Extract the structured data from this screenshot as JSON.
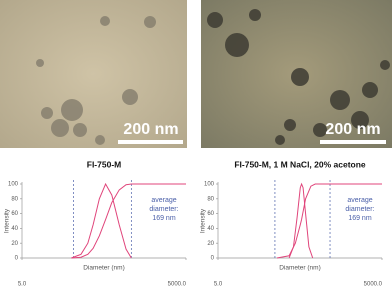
{
  "images": [
    {
      "scale_bar": "200 nm"
    },
    {
      "scale_bar": "200 nm"
    }
  ],
  "chart_data": [
    {
      "type": "line",
      "title": "FI-750-M",
      "xlabel": "Diameter (nm)",
      "ylabel": "Intensity",
      "log_x": true,
      "xlim": [
        5,
        5000
      ],
      "ylim": [
        0,
        100
      ],
      "xticks": [
        {
          "value": 5,
          "label": "5.0"
        },
        {
          "value": 5000,
          "label": "5000.0"
        }
      ],
      "yticks": [
        0,
        20,
        40,
        60,
        80,
        100
      ],
      "vlines": [
        44,
        500
      ],
      "vline_color": "#4a5fa8",
      "annotation": [
        "average",
        "diameter:",
        "169 nm"
      ],
      "series": [
        {
          "color": "#e0457b",
          "x": [
            40,
            60,
            80,
            100,
            130,
            169,
            220,
            300,
            400,
            500
          ],
          "values": [
            0,
            5,
            20,
            45,
            80,
            100,
            85,
            45,
            12,
            0
          ]
        },
        {
          "color": "#e0457b",
          "x": [
            40,
            60,
            80,
            100,
            130,
            169,
            220,
            300,
            400,
            500,
            5000
          ],
          "values": [
            0,
            1,
            5,
            13,
            30,
            52,
            75,
            92,
            99,
            100,
            100
          ]
        }
      ]
    },
    {
      "type": "line",
      "title": "FI-750-M, 1 M NaCl, 20% acetone",
      "xlabel": "Diameter (nm)",
      "ylabel": "Intensity",
      "log_x": true,
      "xlim": [
        5,
        5000
      ],
      "ylim": [
        0,
        100
      ],
      "xticks": [
        {
          "value": 5,
          "label": "5.0"
        },
        {
          "value": 5000,
          "label": "5000.0"
        }
      ],
      "yticks": [
        0,
        20,
        40,
        60,
        80,
        100
      ],
      "vlines": [
        55,
        560
      ],
      "vline_color": "#4a5fa8",
      "annotation": [
        "average",
        "diameter:",
        "169 nm"
      ],
      "series": [
        {
          "color": "#e0457b",
          "x": [
            100,
            120,
            140,
            160,
            169,
            180,
            200,
            230,
            270
          ],
          "values": [
            0,
            15,
            55,
            95,
            100,
            95,
            60,
            15,
            0
          ]
        },
        {
          "color": "#e0457b",
          "x": [
            60,
            100,
            130,
            160,
            169,
            200,
            250,
            300,
            5000
          ],
          "values": [
            0,
            3,
            20,
            45,
            52,
            80,
            97,
            100,
            100
          ]
        }
      ]
    }
  ]
}
